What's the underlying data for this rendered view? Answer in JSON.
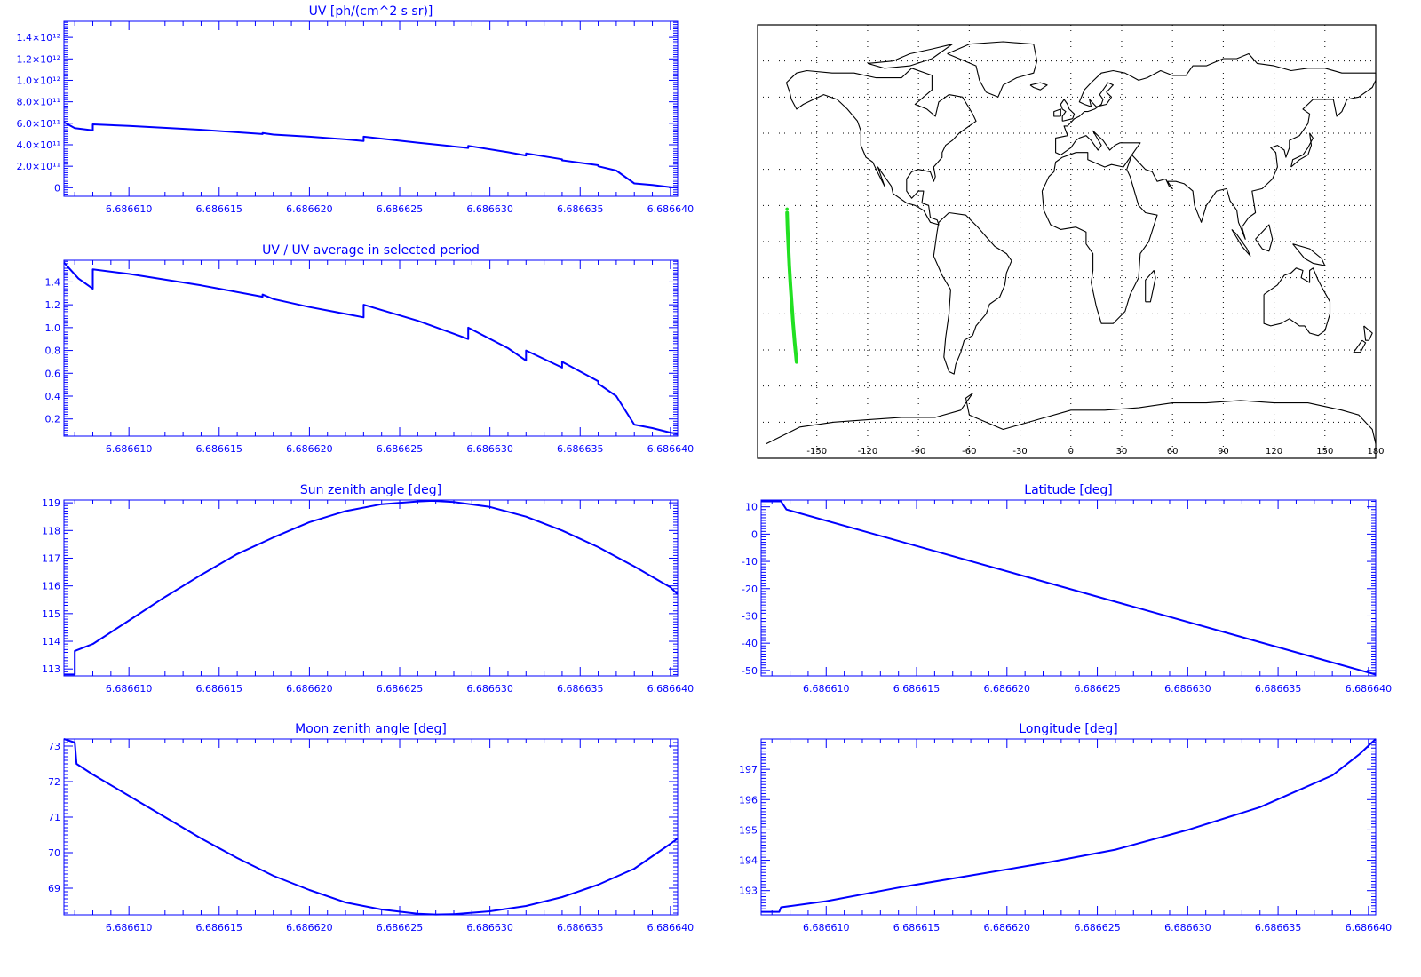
{
  "chart_data": [
    {
      "id": "uv",
      "type": "line",
      "title": "UV [ph/(cm^2 s sr)]",
      "xlim": [
        6.6866064,
        6.6866404
      ],
      "ylim": [
        -80000000000,
        1550000000000
      ],
      "y_ticks": [
        0,
        200000000000,
        400000000000,
        600000000000,
        800000000000,
        1000000000000,
        1200000000000,
        1400000000000
      ],
      "y_tick_labels": [
        "0",
        "2.0×10¹¹",
        "4.0×10¹¹",
        "6.0×10¹¹",
        "8.0×10¹¹",
        "1.0×10¹²",
        "1.2×10¹²",
        "1.4×10¹²"
      ],
      "x_ticks": [
        6.68661,
        6.686615,
        6.68662,
        6.686625,
        6.68663,
        6.686635,
        6.68664
      ],
      "x_tick_labels": [
        "6.686610",
        "6.686615",
        "6.686620",
        "6.686625",
        "6.686630",
        "6.686635",
        "6.686640"
      ],
      "series": [
        {
          "color": "#0000ff",
          "x": [
            6.6866064,
            6.686607,
            6.686608,
            6.686608,
            6.68661,
            6.686614,
            6.6866174,
            6.6866174,
            6.686618,
            6.68662,
            6.686622,
            6.686623,
            6.686623,
            6.686626,
            6.6866288,
            6.6866288,
            6.686631,
            6.686632,
            6.686632,
            6.686634,
            6.686634,
            6.686636,
            6.686636,
            6.686637,
            6.686638,
            6.686639,
            6.68664,
            6.6866404
          ],
          "y": [
            610000000000,
            555000000000,
            535000000000,
            590000000000,
            575000000000,
            540000000000,
            500000000000,
            510000000000,
            495000000000,
            475000000000,
            450000000000,
            435000000000,
            475000000000,
            420000000000,
            370000000000,
            390000000000,
            330000000000,
            300000000000,
            320000000000,
            265000000000,
            255000000000,
            210000000000,
            200000000000,
            160000000000,
            40000000000,
            25000000000,
            5000000000,
            0
          ]
        }
      ]
    },
    {
      "id": "uv-ratio",
      "type": "line",
      "title": "UV / UV average in selected period",
      "xlim": [
        6.6866064,
        6.6866404
      ],
      "ylim": [
        0.05,
        1.59
      ],
      "y_ticks": [
        0.2,
        0.4,
        0.6,
        0.8,
        1.0,
        1.2,
        1.4
      ],
      "y_tick_labels": [
        "0.2",
        "0.4",
        "0.6",
        "0.8",
        "1.0",
        "1.2",
        "1.4"
      ],
      "x_ticks": [
        6.68661,
        6.686615,
        6.68662,
        6.686625,
        6.68663,
        6.686635,
        6.68664
      ],
      "x_tick_labels": [
        "6.686610",
        "6.686615",
        "6.686620",
        "6.686625",
        "6.686630",
        "6.686635",
        "6.686640"
      ],
      "series": [
        {
          "color": "#0000ff",
          "x": [
            6.6866064,
            6.6866072,
            6.686608,
            6.686608,
            6.68661,
            6.686614,
            6.6866174,
            6.6866174,
            6.686618,
            6.68662,
            6.686622,
            6.686623,
            6.686623,
            6.686626,
            6.6866288,
            6.6866288,
            6.686631,
            6.686632,
            6.686632,
            6.686634,
            6.686634,
            6.686636,
            6.686636,
            6.686637,
            6.686638,
            6.686639,
            6.68664,
            6.6866404
          ],
          "y": [
            1.57,
            1.43,
            1.34,
            1.51,
            1.47,
            1.37,
            1.27,
            1.29,
            1.25,
            1.18,
            1.12,
            1.09,
            1.2,
            1.06,
            0.9,
            1.0,
            0.82,
            0.71,
            0.8,
            0.65,
            0.7,
            0.53,
            0.51,
            0.4,
            0.15,
            0.12,
            0.08,
            0.07
          ]
        }
      ]
    },
    {
      "id": "sun-zenith",
      "type": "line",
      "title": "Sun zenith angle [deg]",
      "xlim": [
        6.6866064,
        6.6866404
      ],
      "ylim": [
        112.75,
        119.1
      ],
      "y_ticks": [
        113,
        114,
        115,
        116,
        117,
        118,
        119
      ],
      "y_tick_labels": [
        "113",
        "114",
        "115",
        "116",
        "117",
        "118",
        "119"
      ],
      "x_ticks": [
        6.68661,
        6.686615,
        6.68662,
        6.686625,
        6.68663,
        6.686635,
        6.68664
      ],
      "x_tick_labels": [
        "6.686610",
        "6.686615",
        "6.686620",
        "6.686625",
        "6.686630",
        "6.686635",
        "6.686640"
      ],
      "series": [
        {
          "color": "#0000ff",
          "x": [
            6.6866064,
            6.686607,
            6.686607,
            6.686608,
            6.68661,
            6.686612,
            6.686614,
            6.686616,
            6.686618,
            6.68662,
            6.686622,
            6.686624,
            6.686626,
            6.6866268,
            6.686628,
            6.68663,
            6.686632,
            6.686634,
            6.686636,
            6.686638,
            6.68664,
            6.6866404
          ],
          "y": [
            112.8,
            112.8,
            113.65,
            113.9,
            114.75,
            115.6,
            116.4,
            117.15,
            117.75,
            118.3,
            118.7,
            118.95,
            119.05,
            119.07,
            119.03,
            118.85,
            118.5,
            118.0,
            117.4,
            116.7,
            115.95,
            115.7
          ]
        }
      ]
    },
    {
      "id": "moon-zenith",
      "type": "line",
      "title": "Moon zenith angle [deg]",
      "xlim": [
        6.6866064,
        6.6866404
      ],
      "ylim": [
        68.25,
        73.2
      ],
      "y_ticks": [
        69,
        70,
        71,
        72,
        73
      ],
      "y_tick_labels": [
        "69",
        "70",
        "71",
        "72",
        "73"
      ],
      "x_ticks": [
        6.68661,
        6.686615,
        6.68662,
        6.686625,
        6.68663,
        6.686635,
        6.68664
      ],
      "x_tick_labels": [
        "6.686610",
        "6.686615",
        "6.686620",
        "6.686625",
        "6.686630",
        "6.686635",
        "6.686640"
      ],
      "series": [
        {
          "color": "#0000ff",
          "x": [
            6.6866064,
            6.686607,
            6.6866071,
            6.686608,
            6.68661,
            6.686612,
            6.686614,
            6.686616,
            6.686618,
            6.68662,
            6.686622,
            6.686624,
            6.686626,
            6.686627,
            6.686628,
            6.68663,
            6.686632,
            6.686634,
            6.686636,
            6.686638,
            6.68664,
            6.6866404
          ],
          "y": [
            73.2,
            73.1,
            72.5,
            72.2,
            71.6,
            71.0,
            70.4,
            69.85,
            69.35,
            68.95,
            68.6,
            68.4,
            68.28,
            68.26,
            68.27,
            68.35,
            68.5,
            68.75,
            69.1,
            69.55,
            70.25,
            70.4
          ]
        }
      ]
    },
    {
      "id": "latitude",
      "type": "line",
      "title": "Latitude [deg]",
      "xlim": [
        6.6866064,
        6.6866404
      ],
      "ylim": [
        -52,
        12.5
      ],
      "y_ticks": [
        -50,
        -40,
        -30,
        -20,
        -10,
        0,
        10
      ],
      "y_tick_labels": [
        "-50",
        "-40",
        "-30",
        "-20",
        "-10",
        "0",
        "10"
      ],
      "x_ticks": [
        6.68661,
        6.686615,
        6.68662,
        6.686625,
        6.68663,
        6.686635,
        6.68664
      ],
      "x_tick_labels": [
        "6.686610",
        "6.686615",
        "6.686620",
        "6.686625",
        "6.686630",
        "6.686635",
        "6.686640"
      ],
      "series": [
        {
          "color": "#0000ff",
          "x": [
            6.6866064,
            6.6866075,
            6.6866078,
            6.6866404
          ],
          "y": [
            12.0,
            12.0,
            9.0,
            -51.5
          ]
        }
      ]
    },
    {
      "id": "longitude",
      "type": "line",
      "title": "Longitude [deg]",
      "xlim": [
        6.6866064,
        6.6866404
      ],
      "ylim": [
        192.2,
        198.0
      ],
      "y_ticks": [
        193,
        194,
        195,
        196,
        197
      ],
      "y_tick_labels": [
        "193",
        "194",
        "195",
        "196",
        "197"
      ],
      "x_ticks": [
        6.68661,
        6.686615,
        6.68662,
        6.686625,
        6.68663,
        6.686635,
        6.68664
      ],
      "x_tick_labels": [
        "6.686610",
        "6.686615",
        "6.686620",
        "6.686625",
        "6.686630",
        "6.686635",
        "6.686640"
      ],
      "series": [
        {
          "color": "#0000ff",
          "x": [
            6.6866064,
            6.6866074,
            6.6866075,
            6.68661,
            6.686614,
            6.686618,
            6.686622,
            6.686626,
            6.68663,
            6.686634,
            6.686638,
            6.6866395,
            6.6866404
          ],
          "y": [
            192.3,
            192.3,
            192.45,
            192.65,
            193.1,
            193.5,
            193.9,
            194.35,
            195.0,
            195.75,
            196.8,
            197.5,
            198.0
          ]
        }
      ]
    },
    {
      "id": "ground-track-map",
      "type": "scatter",
      "projection": "equirectangular",
      "xlim": [
        -185,
        180
      ],
      "ylim": [
        -90,
        90
      ],
      "grid": true,
      "x_ticks": [
        -150,
        -120,
        -90,
        -60,
        -30,
        0,
        30,
        60,
        90,
        120,
        150,
        180
      ],
      "x_tick_labels": [
        "-150",
        "-120",
        "-90",
        "-60",
        "-30",
        "0",
        "30",
        "60",
        "90",
        "120",
        "150",
        "180"
      ],
      "grid_lat": [
        -75,
        -60,
        -45,
        -30,
        -15,
        0,
        15,
        30,
        45,
        60,
        75
      ],
      "series": [
        {
          "color": "#22e022",
          "lon": [
            -167.6,
            -167.3,
            -166.8,
            -166.3,
            -165.6,
            -164.8,
            -164.0,
            -163.1,
            -162.0
          ],
          "lat": [
            12,
            5,
            -2,
            -10,
            -18,
            -26,
            -34,
            -42,
            -50
          ]
        }
      ]
    }
  ]
}
